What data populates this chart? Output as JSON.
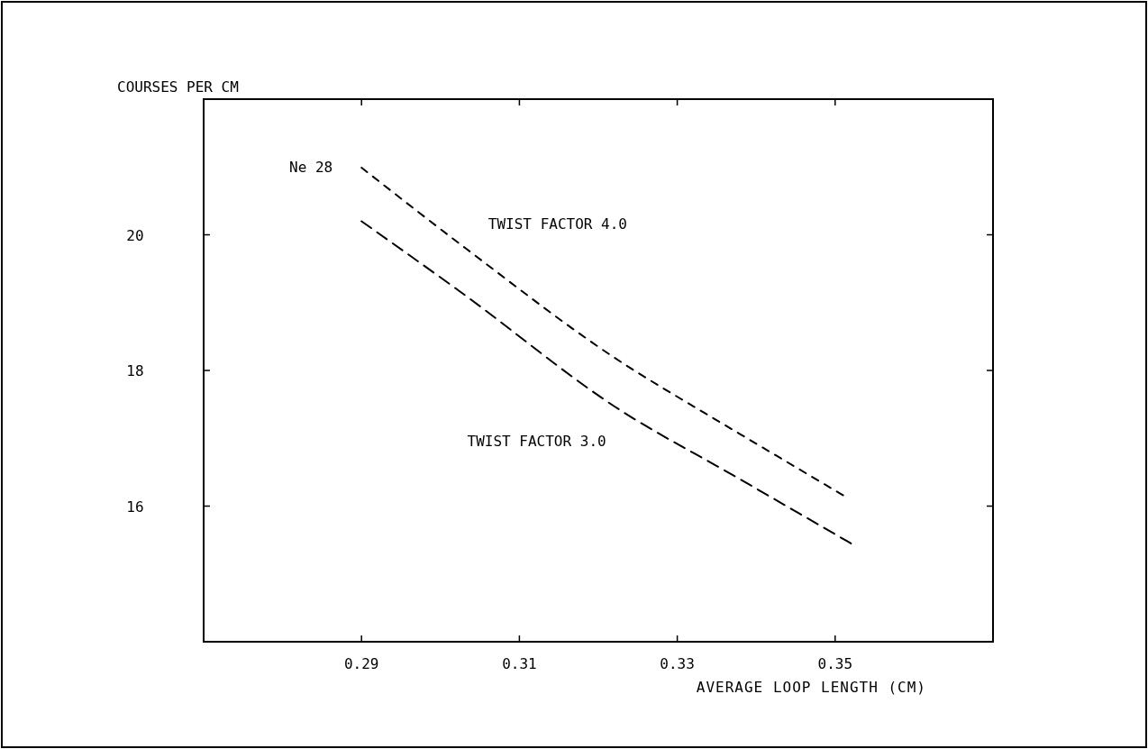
{
  "chart_data": {
    "type": "line",
    "xlabel": "AVERAGE LOOP LENGTH (CM)",
    "ylabel": "COURSES PER CM",
    "xlim": [
      0.27,
      0.37
    ],
    "xticks": [
      0.29,
      0.31,
      0.33,
      0.35
    ],
    "ylim": [
      14,
      22
    ],
    "yticks": [
      16,
      18,
      20
    ],
    "grid": false,
    "marker": "none",
    "line_style": "dashed",
    "series": [
      {
        "name": "TWIST FACTOR 4.0",
        "color": "#000000",
        "x": [
          0.29,
          0.3032,
          0.3232,
          0.3309,
          0.3335,
          0.351
        ],
        "values": [
          20.99,
          19.8,
          18.1,
          17.55,
          17.37,
          16.16
        ]
      },
      {
        "name": "TWIST FACTOR 3.0",
        "color": "#000000",
        "x": [
          0.29,
          0.3024,
          0.3227,
          0.337,
          0.352
        ],
        "values": [
          20.2,
          19.17,
          17.42,
          16.46,
          15.45
        ]
      }
    ],
    "annotations": [
      {
        "text": "Ne 28",
        "x": 0.29,
        "y": 21.0
      }
    ]
  }
}
